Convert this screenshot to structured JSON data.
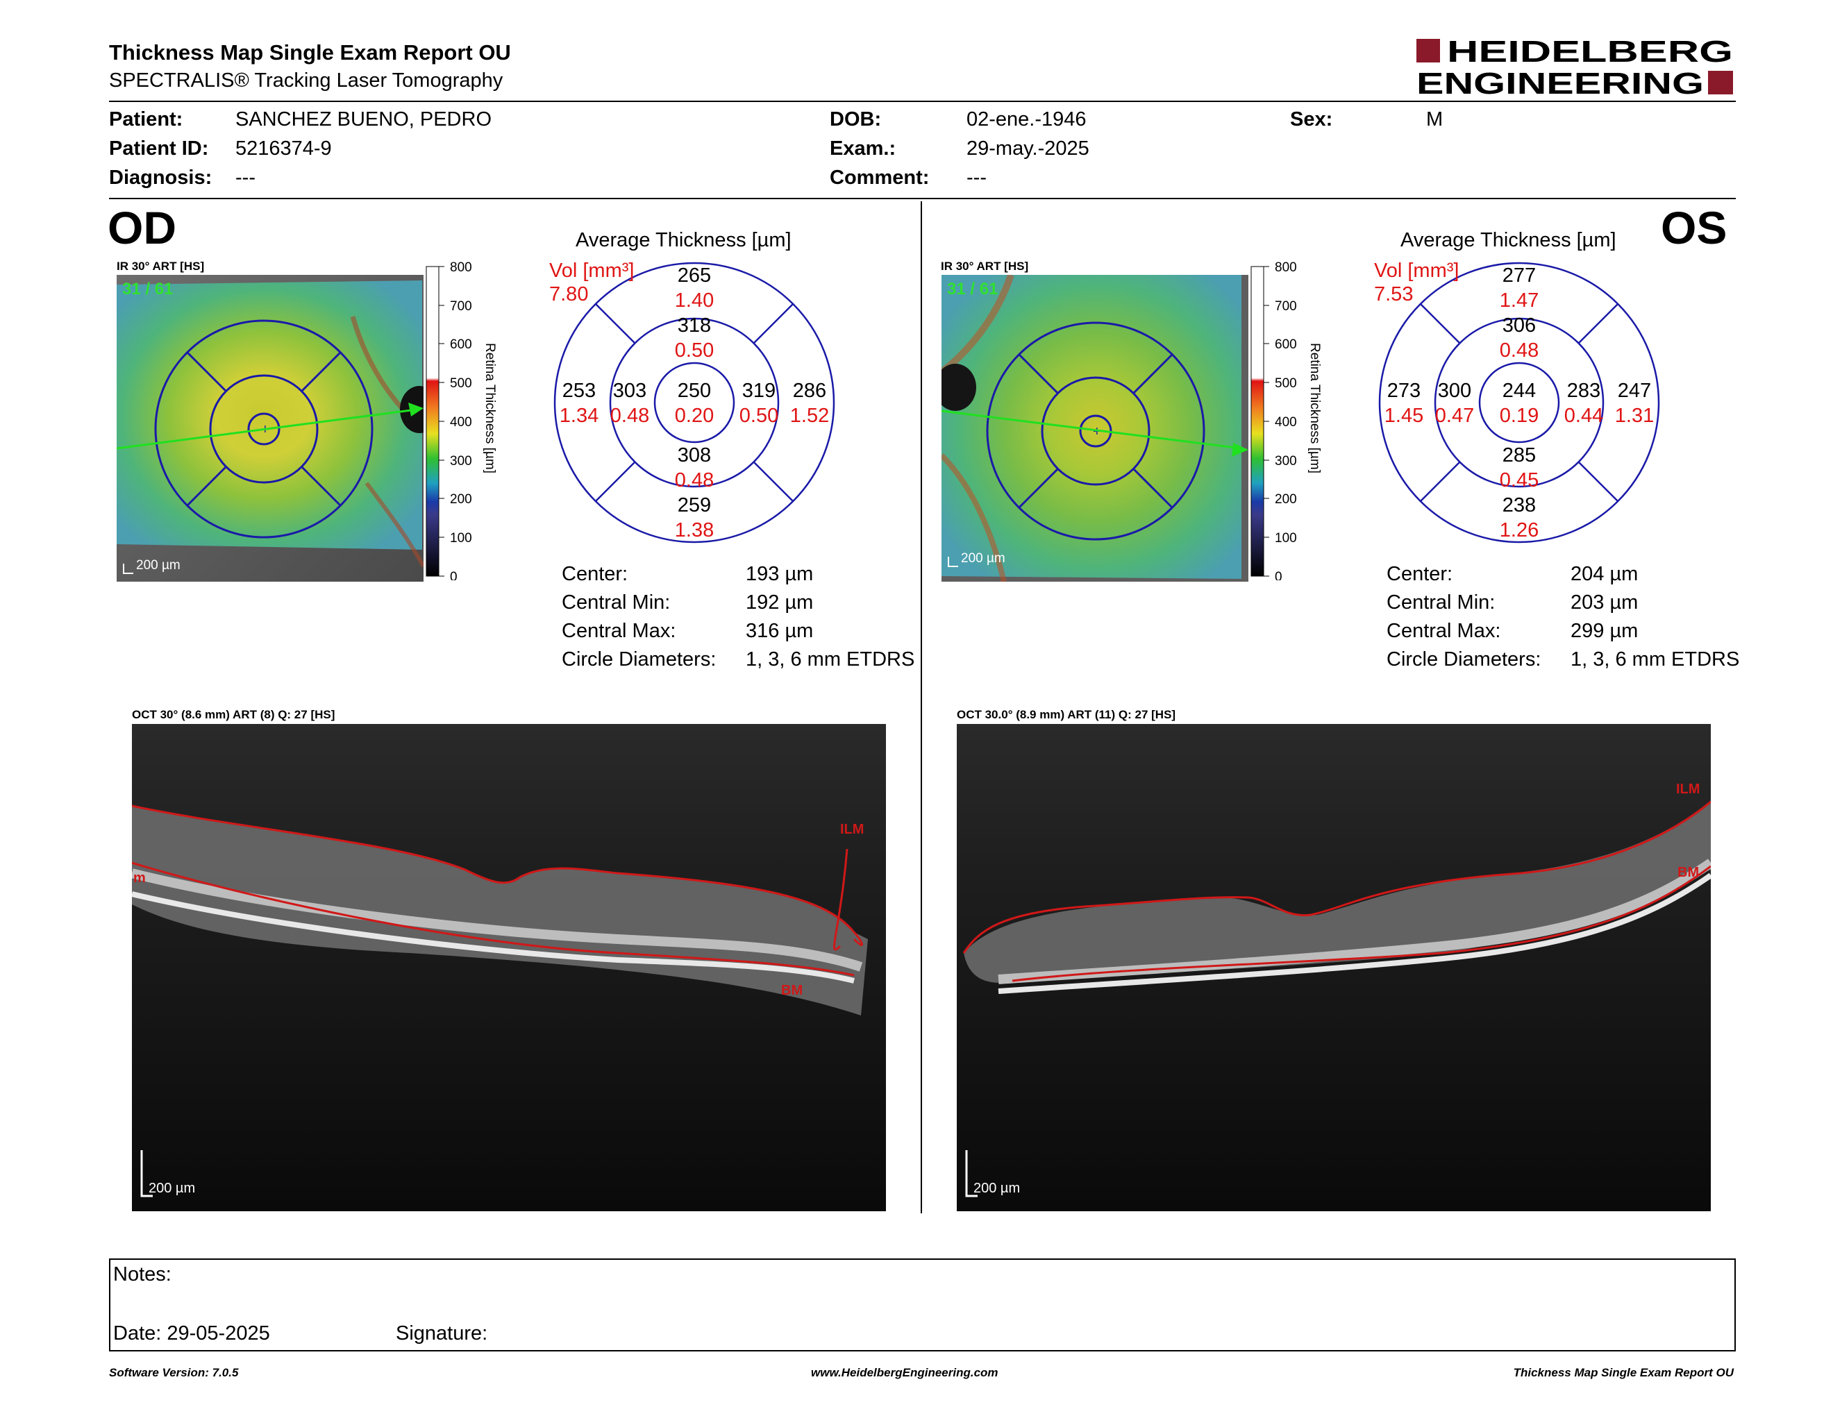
{
  "header": {
    "title": "Thickness Map Single Exam Report OU",
    "subtitle": "SPECTRALIS® Tracking Laser Tomography",
    "logo_line1": "HEIDELBERG",
    "logo_line2": "ENGINEERING"
  },
  "patient": {
    "patient_label": "Patient:",
    "patient_value": "SANCHEZ BUENO, PEDRO",
    "id_label": "Patient ID:",
    "id_value": "5216374-9",
    "diagnosis_label": "Diagnosis:",
    "diagnosis_value": "---",
    "dob_label": "DOB:",
    "dob_value": "02-ene.-1946",
    "exam_label": "Exam.:",
    "exam_value": "29-may.-2025",
    "comment_label": "Comment:",
    "comment_value": "---",
    "sex_label": "Sex:",
    "sex_value": "M"
  },
  "colorbar": {
    "label": "Retina Thickness [µm]",
    "ticks": [
      "800",
      "700",
      "600",
      "500",
      "400",
      "300",
      "200",
      "100",
      "0"
    ]
  },
  "od": {
    "eye": "OD",
    "ir_label": "IR 30° ART [HS]",
    "frame": "31 / 61",
    "scale": "200 µm",
    "avg_title": "Average Thickness [µm]",
    "vol_label": "Vol [mm³]",
    "vol_total": "7.80",
    "grid": {
      "center_t": "250",
      "center_v": "0.20",
      "inner_sup_t": "318",
      "inner_sup_v": "0.50",
      "inner_inf_t": "308",
      "inner_inf_v": "0.48",
      "inner_left_t": "303",
      "inner_left_v": "0.48",
      "inner_right_t": "319",
      "inner_right_v": "0.50",
      "outer_sup_t": "265",
      "outer_sup_v": "1.40",
      "outer_inf_t": "259",
      "outer_inf_v": "1.38",
      "outer_left_t": "253",
      "outer_left_v": "1.34",
      "outer_right_t": "286",
      "outer_right_v": "1.52"
    },
    "stats": {
      "center_label": "Center:",
      "center_value": "193 µm",
      "min_label": "Central Min:",
      "min_value": "192 µm",
      "max_label": "Central Max:",
      "max_value": "316 µm",
      "diam_label": "Circle Diameters:",
      "diam_value": "1, 3, 6 mm ETDRS"
    },
    "oct_label": "OCT 30° (8.6 mm) ART (8) Q: 27 [HS]",
    "oct_scale": "200 µm",
    "ilm": "ILM",
    "bm": "BM",
    "bm_left": "m"
  },
  "os": {
    "eye": "OS",
    "ir_label": "IR 30° ART [HS]",
    "frame": "31 / 61",
    "scale": "200 µm",
    "avg_title": "Average Thickness [µm]",
    "vol_label": "Vol [mm³]",
    "vol_total": "7.53",
    "grid": {
      "center_t": "244",
      "center_v": "0.19",
      "inner_sup_t": "306",
      "inner_sup_v": "0.48",
      "inner_inf_t": "285",
      "inner_inf_v": "0.45",
      "inner_left_t": "300",
      "inner_left_v": "0.47",
      "inner_right_t": "283",
      "inner_right_v": "0.44",
      "outer_sup_t": "277",
      "outer_sup_v": "1.47",
      "outer_inf_t": "238",
      "outer_inf_v": "1.26",
      "outer_left_t": "273",
      "outer_left_v": "1.45",
      "outer_right_t": "247",
      "outer_right_v": "1.31"
    },
    "stats": {
      "center_label": "Center:",
      "center_value": "204 µm",
      "min_label": "Central Min:",
      "min_value": "203 µm",
      "max_label": "Central Max:",
      "max_value": "299 µm",
      "diam_label": "Circle Diameters:",
      "diam_value": "1, 3, 6 mm ETDRS"
    },
    "oct_label": "OCT 30.0° (8.9 mm) ART (11) Q: 27 [HS]",
    "oct_scale": "200 µm",
    "ilm": "ILM",
    "bm": "BM"
  },
  "notes": {
    "notes_label": "Notes:",
    "date_label": "Date: 29-05-2025",
    "signature_label": "Signature:"
  },
  "footer": {
    "software": "Software Version: 7.0.5",
    "url": "www.HeidelbergEngineering.com",
    "report": "Thickness Map Single Exam Report OU"
  },
  "colors": {
    "accent_red": "#e01414",
    "grid_blue": "#1a1aa8",
    "logo_maroon": "#8a1a2a",
    "seg_red": "#d01818"
  }
}
